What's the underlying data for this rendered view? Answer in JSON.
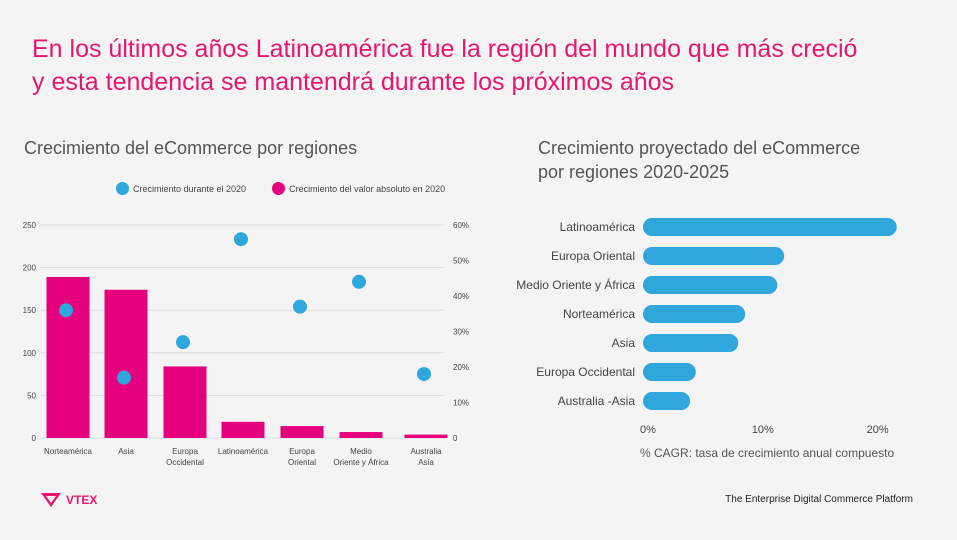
{
  "headline": {
    "line1": "En los últimos años Latinoamérica fue la región del mundo que más creció",
    "line2": "y esta tendencia se mantendrá durante los próximos años"
  },
  "colors": {
    "magenta": "#e5007d",
    "blue": "#2fa6dc",
    "accent_text": "#e5186e"
  },
  "footer": {
    "brand": "VTEX",
    "tagline": "The Enterprise Digital Commerce Platform"
  },
  "chart_data": [
    {
      "type": "bar",
      "title": "Crecimiento del eCommerce por regiones",
      "categories": [
        [
          "Norteamérica"
        ],
        [
          "Asia"
        ],
        [
          "Europa",
          "Occidental"
        ],
        [
          "Latinoamérica"
        ],
        [
          "Europa",
          "Oriental"
        ],
        [
          "Medio",
          "Oriente y África"
        ],
        [
          "Australia",
          "Asia"
        ]
      ],
      "series": [
        {
          "name": "Crecimiento del valor absoluto en 2020",
          "kind": "bar",
          "axis": "left",
          "values": [
            189,
            174,
            84,
            19,
            14,
            7,
            4
          ]
        },
        {
          "name": "Crecimiento durante el 2020",
          "kind": "scatter",
          "axis": "right",
          "values": [
            36,
            17,
            27,
            56,
            37,
            44,
            18
          ]
        }
      ],
      "left_axis": {
        "ylim": [
          0,
          250
        ],
        "ticks": [
          0,
          50,
          100,
          150,
          200,
          250
        ]
      },
      "right_axis": {
        "ylim": [
          0,
          60
        ],
        "ticks": [
          "0",
          "10%",
          "20%",
          "30%",
          "40%",
          "50%",
          "60%"
        ]
      },
      "grid": true,
      "legend_position": "top"
    },
    {
      "type": "bar",
      "orientation": "horizontal",
      "title_line1": "Crecimiento proyectado del eCommerce",
      "title_line2": "por regiones 2020-2025",
      "categories": [
        "Latinoamérica",
        "Europa Oriental",
        "Medio Oriente y África",
        "Norteamérica",
        "Asia",
        "Europa Occidental",
        "Australia -Asia"
      ],
      "values": [
        22.1,
        12.3,
        11.7,
        8.9,
        8.3,
        4.6,
        4.1
      ],
      "xlim": [
        0,
        25
      ],
      "xticks": [
        "0%",
        "10%",
        "20%"
      ],
      "xlabel": "% CAGR: tasa de crecimiento anual compuesto"
    }
  ]
}
